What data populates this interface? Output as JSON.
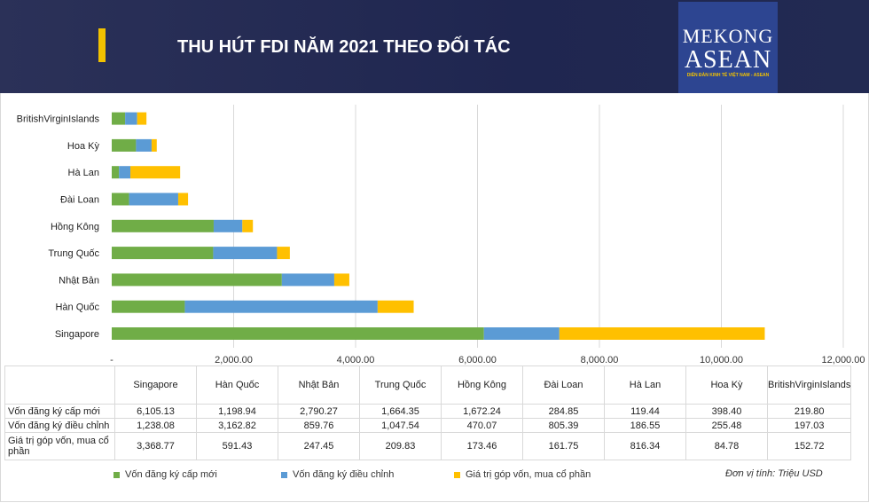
{
  "header": {
    "title": "THU HÚT FDI NĂM 2021 THEO ĐỐI TÁC",
    "logo_line1": "MEKONG",
    "logo_line2": "ASEAN",
    "logo_tagline": "DIỄN ĐÀN KINH TẾ VIỆT NAM - ASEAN"
  },
  "unit_note": "Đơn vị tính: Triệu USD",
  "chart_data": {
    "type": "bar",
    "orientation": "horizontal",
    "stacked": true,
    "title": "THU HÚT FDI NĂM 2021 THEO ĐỐI TÁC",
    "categories": [
      "Singapore",
      "Hàn Quốc",
      "Nhật Bản",
      "Trung Quốc",
      "Hồng Kông",
      "Đài Loan",
      "Hà Lan",
      "Hoa Kỳ",
      "BritishVirginIslands"
    ],
    "series": [
      {
        "name": "Vốn đăng ký cấp mới",
        "color": "#70ad47",
        "values": [
          6105.13,
          1198.94,
          2790.27,
          1664.35,
          1672.24,
          284.85,
          119.44,
          398.4,
          219.8
        ],
        "labels": [
          "6,105.13",
          "1,198.94",
          "2,790.27",
          "1,664.35",
          "1,672.24",
          "284.85",
          "119.44",
          "398.40",
          "219.80"
        ]
      },
      {
        "name": "Vốn đăng ký điều chỉnh",
        "color": "#5b9bd5",
        "values": [
          1238.08,
          3162.82,
          859.76,
          1047.54,
          470.07,
          805.39,
          186.55,
          255.48,
          197.03
        ],
        "labels": [
          "1,238.08",
          "3,162.82",
          "859.76",
          "1,047.54",
          "470.07",
          "805.39",
          "186.55",
          "255.48",
          "197.03"
        ]
      },
      {
        "name": "Giá trị góp vốn, mua cổ phần",
        "color": "#ffc000",
        "values": [
          3368.77,
          591.43,
          247.45,
          209.83,
          173.46,
          161.75,
          816.34,
          84.78,
          152.72
        ],
        "labels": [
          "3,368.77",
          "591.43",
          "247.45",
          "209.83",
          "173.46",
          "161.75",
          "816.34",
          "84.78",
          "152.72"
        ]
      }
    ],
    "xlim": [
      0,
      12000
    ],
    "xticks": [
      0,
      2000,
      4000,
      6000,
      8000,
      10000,
      12000
    ],
    "xtick_labels": [
      "-",
      "2,000.00",
      "4,000.00",
      "6,000.00",
      "8,000.00",
      "10,000.00",
      "12,000.00"
    ],
    "grid": true,
    "legend": "bottom"
  }
}
